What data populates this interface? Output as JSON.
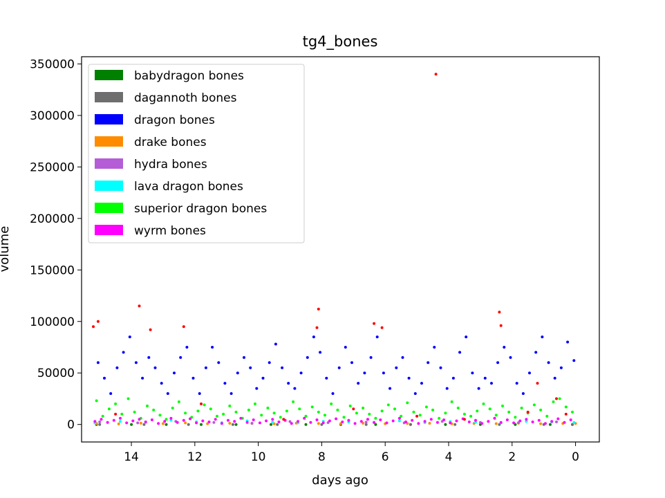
{
  "chart_data": {
    "type": "scatter",
    "title": "tg4_bones",
    "xlabel": "days ago",
    "ylabel": "volume",
    "x_inverted": true,
    "xlim": [
      15.57,
      -0.75
    ],
    "ylim": [
      -17000,
      357000
    ],
    "x_ticks": [
      14,
      12,
      10,
      8,
      6,
      4,
      2,
      0
    ],
    "y_ticks": [
      0,
      50000,
      100000,
      150000,
      200000,
      250000,
      300000,
      350000
    ],
    "x_tick_labels": [
      "14",
      "12",
      "10",
      "8",
      "6",
      "4",
      "2",
      "0"
    ],
    "y_tick_labels": [
      "0",
      "50000",
      "100000",
      "150000",
      "200000",
      "250000",
      "300000",
      "350000"
    ],
    "legend_position": "upper-left",
    "grid": false,
    "series": [
      {
        "name": "babydragon bones",
        "color": "#008000",
        "x": [
          15.1,
          14.0,
          12.9,
          11.8,
          10.7,
          9.6,
          8.5,
          7.4,
          6.3,
          5.2,
          4.1,
          3.0,
          1.9,
          0.8,
          0.1
        ],
        "y": [
          0,
          0,
          0,
          0,
          0,
          0,
          0,
          0,
          0,
          0,
          0,
          0,
          0,
          0,
          0
        ]
      },
      {
        "name": "dagannoth bones",
        "color": "#6e6e6e",
        "x": [
          15.0,
          13.6,
          12.2,
          10.8,
          9.4,
          8.0,
          6.6,
          5.2,
          3.8,
          2.4,
          1.0,
          0.1
        ],
        "y": [
          0,
          0,
          0,
          0,
          0,
          0,
          0,
          0,
          0,
          0,
          0,
          0
        ]
      },
      {
        "name": "dragon bones",
        "color": "#0000ff",
        "x": [
          15.05,
          14.85,
          14.65,
          14.45,
          14.25,
          14.05,
          13.85,
          13.65,
          13.45,
          13.25,
          13.05,
          12.85,
          12.65,
          12.45,
          12.25,
          12.05,
          11.85,
          11.65,
          11.45,
          11.25,
          11.05,
          10.85,
          10.65,
          10.45,
          10.25,
          10.05,
          9.85,
          9.65,
          9.45,
          9.25,
          9.05,
          8.85,
          8.65,
          8.45,
          8.25,
          8.05,
          7.85,
          7.65,
          7.45,
          7.25,
          7.05,
          6.85,
          6.65,
          6.45,
          6.25,
          6.05,
          5.85,
          5.65,
          5.45,
          5.25,
          5.05,
          4.85,
          4.65,
          4.45,
          4.25,
          4.05,
          3.85,
          3.65,
          3.45,
          3.25,
          3.05,
          2.85,
          2.65,
          2.45,
          2.25,
          2.05,
          1.85,
          1.65,
          1.45,
          1.25,
          1.05,
          0.85,
          0.65,
          0.45,
          0.25,
          0.05
        ],
        "y": [
          60000,
          45000,
          30000,
          55000,
          70000,
          85000,
          60000,
          45000,
          65000,
          55000,
          40000,
          30000,
          50000,
          65000,
          75000,
          45000,
          30000,
          55000,
          75000,
          60000,
          40000,
          30000,
          50000,
          65000,
          55000,
          35000,
          45000,
          60000,
          78000,
          55000,
          40000,
          35000,
          50000,
          65000,
          85000,
          70000,
          45000,
          30000,
          55000,
          75000,
          60000,
          40000,
          50000,
          65000,
          85000,
          50000,
          35000,
          55000,
          65000,
          45000,
          30000,
          40000,
          60000,
          75000,
          55000,
          35000,
          45000,
          70000,
          85000,
          50000,
          35000,
          45000,
          40000,
          60000,
          75000,
          65000,
          40000,
          30000,
          50000,
          70000,
          85000,
          60000,
          45000,
          55000,
          80000,
          62000
        ]
      },
      {
        "name": "drake bones",
        "color": "#ff8c00",
        "x": [
          15.1,
          14.4,
          13.7,
          13.0,
          12.3,
          11.6,
          10.9,
          10.2,
          9.5,
          8.8,
          8.1,
          7.4,
          6.7,
          6.0,
          5.3,
          4.6,
          3.9,
          3.2,
          2.5,
          1.8,
          1.1,
          0.4,
          0.0
        ],
        "y": [
          1000,
          500,
          1200,
          800,
          1500,
          700,
          1100,
          900,
          600,
          1300,
          1000,
          800,
          1200,
          700,
          900,
          1100,
          600,
          1000,
          800,
          1200,
          700,
          900,
          1000
        ]
      },
      {
        "name": "hydra bones",
        "color": "#b55dd6",
        "x": [
          15.0,
          13.8,
          12.6,
          11.4,
          10.2,
          9.0,
          7.8,
          6.6,
          5.4,
          4.2,
          3.0,
          1.8,
          0.6
        ],
        "y": [
          2500,
          1500,
          3000,
          2000,
          1200,
          2800,
          1800,
          2200,
          1500,
          3000,
          2000,
          1700,
          2500
        ]
      },
      {
        "name": "lava dragon bones",
        "color": "#00ffff",
        "x": [
          15.15,
          14.35,
          13.55,
          12.75,
          11.95,
          11.15,
          10.35,
          9.55,
          8.75,
          7.95,
          7.15,
          6.35,
          5.55,
          4.75,
          3.95,
          3.15,
          2.35,
          1.55,
          0.75,
          0.05
        ],
        "y": [
          1500,
          3000,
          2000,
          4000,
          2500,
          1800,
          3500,
          2200,
          1500,
          3000,
          2500,
          2000,
          3500,
          1800,
          2800,
          2200,
          1500,
          3000,
          2500,
          2000
        ]
      },
      {
        "name": "superior dragon bones",
        "color": "#00ff00",
        "x": [
          15.1,
          14.9,
          14.7,
          14.5,
          14.3,
          14.1,
          13.9,
          13.7,
          13.5,
          13.3,
          13.1,
          12.9,
          12.7,
          12.5,
          12.3,
          12.1,
          11.9,
          11.7,
          11.5,
          11.3,
          11.1,
          10.9,
          10.7,
          10.5,
          10.3,
          10.1,
          9.9,
          9.7,
          9.5,
          9.3,
          9.1,
          8.9,
          8.7,
          8.5,
          8.3,
          8.1,
          7.9,
          7.7,
          7.5,
          7.3,
          7.1,
          6.9,
          6.7,
          6.5,
          6.3,
          6.1,
          5.9,
          5.7,
          5.5,
          5.3,
          5.1,
          4.9,
          4.7,
          4.5,
          4.3,
          4.1,
          3.9,
          3.7,
          3.5,
          3.3,
          3.1,
          2.9,
          2.7,
          2.5,
          2.3,
          2.1,
          1.9,
          1.7,
          1.5,
          1.3,
          1.1,
          0.9,
          0.7,
          0.5,
          0.3,
          0.1
        ],
        "y": [
          23000,
          8000,
          15000,
          20000,
          10000,
          25000,
          12000,
          6000,
          18000,
          14000,
          9000,
          5000,
          16000,
          22000,
          11000,
          7000,
          13000,
          19000,
          15000,
          8000,
          10000,
          18000,
          12000,
          6000,
          14000,
          20000,
          9000,
          16000,
          11000,
          7000,
          13000,
          22000,
          15000,
          8000,
          17000,
          12000,
          9000,
          20000,
          14000,
          7000,
          18000,
          11000,
          16000,
          10000,
          6000,
          13000,
          19000,
          15000,
          8000,
          21000,
          12000,
          9000,
          17000,
          14000,
          6000,
          11000,
          22000,
          16000,
          10000,
          8000,
          13000,
          20000,
          15000,
          9000,
          18000,
          12000,
          7000,
          16000,
          11000,
          19000,
          14000,
          8000,
          22000,
          25000,
          17000,
          12000
        ]
      },
      {
        "name": "wyrm bones",
        "color": "#ff00ff",
        "x": [
          15.15,
          14.95,
          14.75,
          14.55,
          14.35,
          14.15,
          13.95,
          13.75,
          13.55,
          13.35,
          13.15,
          12.95,
          12.75,
          12.55,
          12.35,
          12.15,
          11.95,
          11.75,
          11.55,
          11.35,
          11.15,
          10.95,
          10.75,
          10.55,
          10.35,
          10.15,
          9.95,
          9.75,
          9.55,
          9.35,
          9.15,
          8.95,
          8.75,
          8.55,
          8.35,
          8.15,
          7.95,
          7.75,
          7.55,
          7.35,
          7.15,
          6.95,
          6.75,
          6.55,
          6.35,
          6.15,
          5.95,
          5.75,
          5.55,
          5.35,
          5.15,
          4.95,
          4.75,
          4.55,
          4.35,
          4.15,
          3.95,
          3.75,
          3.55,
          3.35,
          3.15,
          2.95,
          2.75,
          2.55,
          2.35,
          2.15,
          1.95,
          1.75,
          1.55,
          1.35,
          1.15,
          0.95,
          0.75,
          0.55,
          0.35,
          0.15
        ],
        "y": [
          3000,
          5000,
          2000,
          4000,
          6000,
          1500,
          3500,
          5000,
          2500,
          4500,
          1000,
          3000,
          6000,
          2000,
          4000,
          5500,
          1500,
          3500,
          2500,
          5000,
          1000,
          4000,
          3000,
          6000,
          2000,
          4500,
          1500,
          3500,
          5000,
          2500,
          4000,
          1000,
          3000,
          6000,
          2000,
          4500,
          1500,
          3500,
          5500,
          2500,
          4000,
          1000,
          3000,
          5000,
          2000,
          4500,
          1500,
          3500,
          6000,
          2500,
          4000,
          1000,
          3000,
          5000,
          2000,
          4500,
          1500,
          3500,
          5500,
          2500,
          4000,
          1000,
          3000,
          6000,
          2000,
          4500,
          1500,
          3500,
          5000,
          2500,
          4000,
          1000,
          3000,
          5500,
          2000,
          4500
        ]
      },
      {
        "color": "#ff0000",
        "x": [
          15.2,
          15.05,
          13.75,
          13.4,
          12.35,
          8.1,
          8.15,
          6.35,
          6.1,
          4.4,
          2.4,
          2.35,
          1.2,
          0.6,
          0.3,
          14.5,
          11.8,
          9.2,
          7.0,
          5.0,
          3.5,
          1.5
        ],
        "y": [
          95000,
          100000,
          115000,
          92000,
          95000,
          112000,
          94000,
          98000,
          94000,
          340000,
          109000,
          96000,
          40000,
          25000,
          10000,
          10000,
          20000,
          5000,
          15000,
          8000,
          5000,
          12000
        ]
      }
    ]
  }
}
